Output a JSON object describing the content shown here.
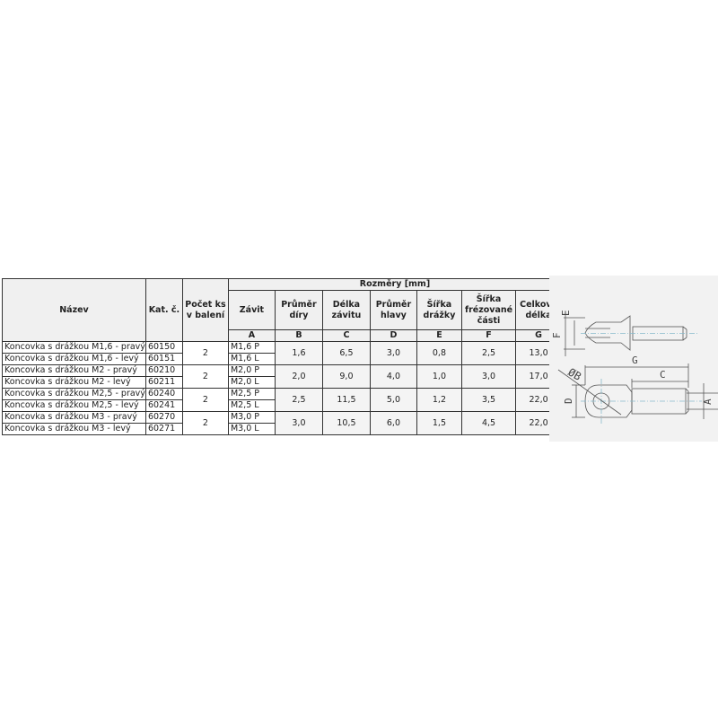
{
  "table": {
    "group_header": "Rozměry [mm]",
    "columns": [
      {
        "label": "Název"
      },
      {
        "label": "Kat. č."
      },
      {
        "label": "Počet ks v balení"
      },
      {
        "label": "Závit",
        "letter": "A"
      },
      {
        "label": "Průměr díry",
        "letter": "B"
      },
      {
        "label": "Délka závitu",
        "letter": "C"
      },
      {
        "label": "Průměr hlavy",
        "letter": "D"
      },
      {
        "label": "Šířka drážky",
        "letter": "E"
      },
      {
        "label": "Šířka frézované části",
        "letter": "F"
      },
      {
        "label": "Celková délka",
        "letter": "G"
      }
    ],
    "groups": [
      {
        "qty": "2",
        "B": "1,6",
        "C": "6,5",
        "D": "3,0",
        "E": "0,8",
        "F": "2,5",
        "G": "13,0",
        "rows": [
          {
            "name": "Koncovka s drážkou M1,6 - pravý",
            "cat": "60150",
            "thread": "M1,6 P"
          },
          {
            "name": "Koncovka s drážkou M1,6 - levý",
            "cat": "60151",
            "thread": "M1,6 L"
          }
        ]
      },
      {
        "qty": "2",
        "B": "2,0",
        "C": "9,0",
        "D": "4,0",
        "E": "1,0",
        "F": "3,0",
        "G": "17,0",
        "rows": [
          {
            "name": "Koncovka s drážkou M2 - pravý",
            "cat": "60210",
            "thread": "M2,0 P"
          },
          {
            "name": "Koncovka s drážkou M2 - levý",
            "cat": "60211",
            "thread": "M2,0 L"
          }
        ]
      },
      {
        "qty": "2",
        "B": "2,5",
        "C": "11,5",
        "D": "5,0",
        "E": "1,2",
        "F": "3,5",
        "G": "22,0",
        "rows": [
          {
            "name": "Koncovka s drážkou M2,5 - pravý",
            "cat": "60240",
            "thread": "M2,5 P"
          },
          {
            "name": "Koncovka s drážkou M2,5 - levý",
            "cat": "60241",
            "thread": "M2,5 L"
          }
        ]
      },
      {
        "qty": "2",
        "B": "3,0",
        "C": "10,5",
        "D": "6,0",
        "E": "1,5",
        "F": "4,5",
        "G": "22,0",
        "rows": [
          {
            "name": "Koncovka s drážkou M3 - pravý",
            "cat": "60270",
            "thread": "M3,0 P"
          },
          {
            "name": "Koncovka s drážkou M3 - levý",
            "cat": "60271",
            "thread": "M3,0 L"
          }
        ]
      }
    ]
  },
  "drawing": {
    "labels": [
      "E",
      "F",
      "G",
      "C",
      "ØB",
      "D",
      "A"
    ]
  }
}
